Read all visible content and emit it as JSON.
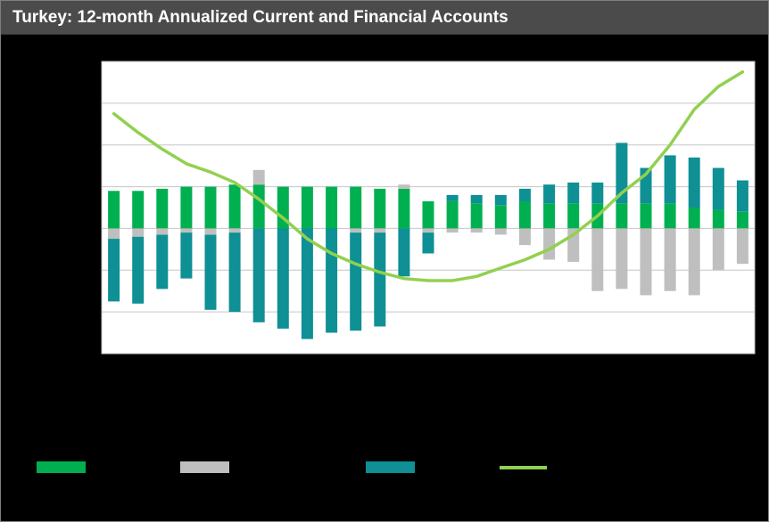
{
  "chart_data": {
    "type": "bar",
    "title": "Turkey: 12-month Annualized Current and Financial Accounts",
    "xlabel": "",
    "ylabel": "",
    "ylim": [
      -60,
      80
    ],
    "grid_interval": 20,
    "grid": true,
    "axis_tick_labels_visible": false,
    "x": [
      1,
      2,
      3,
      4,
      5,
      6,
      7,
      8,
      9,
      10,
      11,
      12,
      13,
      14,
      15,
      16,
      17,
      18,
      19,
      20,
      21,
      22,
      23,
      24,
      25,
      26,
      27
    ],
    "stacked": true,
    "series": [
      {
        "name": "green-bars",
        "type": "bar",
        "color": "#00b050",
        "values": [
          18,
          18,
          19,
          20,
          20,
          21,
          21,
          20,
          20,
          20,
          20,
          19,
          19,
          13,
          13,
          12,
          11,
          13,
          12,
          12,
          12,
          12,
          12,
          12,
          10,
          9,
          8
        ]
      },
      {
        "name": "gray-bars",
        "type": "bar",
        "color": "#bfbfbf",
        "values": [
          -5,
          -4,
          -3,
          -2,
          -3,
          -2,
          7,
          0,
          0,
          0,
          -2,
          -2,
          2,
          -2,
          -2,
          -2,
          -3,
          -8,
          -15,
          -16,
          -30,
          -29,
          -32,
          -30,
          -32,
          -20,
          -17
        ]
      },
      {
        "name": "teal-bars",
        "type": "bar",
        "color": "#0e9094",
        "values": [
          -30,
          -32,
          -26,
          -22,
          -36,
          -38,
          -45,
          -48,
          -53,
          -50,
          -47,
          -45,
          -23,
          -10,
          3,
          4,
          5,
          6,
          9,
          10,
          10,
          29,
          17,
          23,
          24,
          20,
          15
        ]
      },
      {
        "name": "lime-line",
        "type": "line",
        "color": "#92d050",
        "values": [
          55,
          46,
          38,
          31,
          27,
          22,
          14,
          5,
          -5,
          -12,
          -17,
          -21,
          -24,
          -25,
          -25,
          -23,
          -19,
          -15,
          -10,
          -3,
          6,
          17,
          26,
          40,
          57,
          68,
          75
        ]
      }
    ],
    "legend_position": "bottom"
  },
  "theme": {
    "page_background": "#000000",
    "titlebar_background": "#4b4b4b",
    "plot_background": "#ffffff",
    "gridline_color": "#c6c6c6",
    "plot_border_color": "#bfbfbf"
  },
  "legend": {
    "items": [
      {
        "name": "green-series-swatch",
        "shape": "rect",
        "color": "#00b050",
        "label": ""
      },
      {
        "name": "gray-series-swatch",
        "shape": "rect",
        "color": "#bfbfbf",
        "label": ""
      },
      {
        "name": "teal-series-swatch",
        "shape": "rect",
        "color": "#0e9094",
        "label": ""
      },
      {
        "name": "lime-line-swatch",
        "shape": "line",
        "color": "#92d050",
        "label": ""
      }
    ]
  }
}
